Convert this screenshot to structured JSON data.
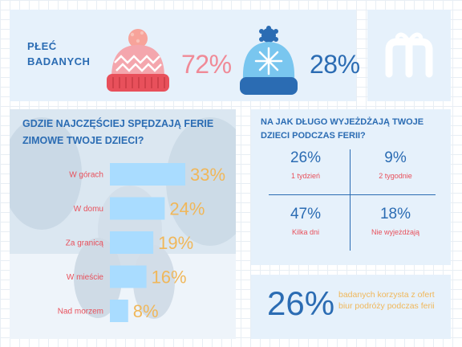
{
  "gender": {
    "label": "PŁEĆ\nBADANYCH",
    "female_pct": "72%",
    "male_pct": "28%"
  },
  "places": {
    "title": "GDZIE NAJCZĘŚCIEJ SPĘDZAJĄ FERIE ZIMOWE TWOJE DZIECI?"
  },
  "duration": {
    "title": "NA JAK DŁUGO WYJEŻDŻAJĄ TWOJE DZIECI PODCZAS FERII?",
    "cells": [
      {
        "pct": "26%",
        "label": "1 tydzień"
      },
      {
        "pct": "9%",
        "label": "2 tygodnie"
      },
      {
        "pct": "47%",
        "label": "Kilka dni"
      },
      {
        "pct": "18%",
        "label": "Nie wyjeżdżają"
      }
    ]
  },
  "offer": {
    "pct": "26%",
    "text": "badanych korzysta z ofert biur podróży podczas ferii"
  },
  "colors": {
    "panel": "#e6f1fb",
    "dark_blue": "#2b6cb3",
    "pink": "#f08a97",
    "red": "#e8505b",
    "bar": "#a9dcff",
    "orange": "#f0b75a"
  },
  "icons": [
    "pink-winter-hat-icon",
    "blue-winter-hat-icon",
    "brand-logo-icon"
  ],
  "chart_data": {
    "type": "bar",
    "orientation": "horizontal",
    "title": "GDZIE NAJCZĘŚCIEJ SPĘDZAJĄ FERIE ZIMOWE TWOJE DZIECI?",
    "categories": [
      "W górach",
      "W domu",
      "Za granicą",
      "W mieście",
      "Nad morzem"
    ],
    "values": [
      33,
      24,
      19,
      16,
      8
    ],
    "value_labels": [
      "33%",
      "24%",
      "19%",
      "16%",
      "8%"
    ],
    "xlim": [
      0,
      33
    ],
    "grid": false,
    "legend": "none"
  }
}
